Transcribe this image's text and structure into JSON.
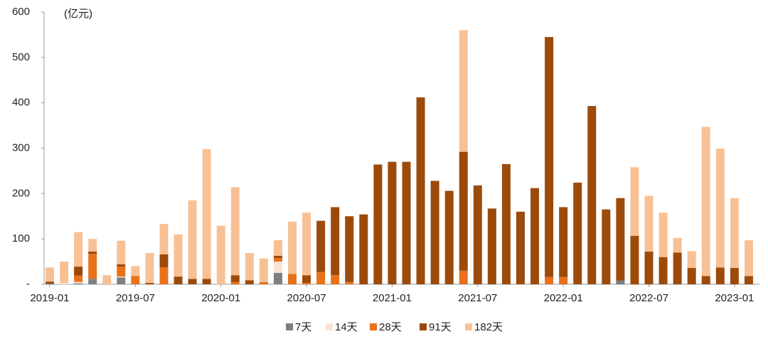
{
  "chart_data": {
    "type": "stacked_bar",
    "annotation": "(亿元)",
    "categories": [
      "2019-01",
      null,
      null,
      null,
      null,
      null,
      "2019-07",
      null,
      null,
      null,
      null,
      null,
      "2020-01",
      null,
      null,
      null,
      null,
      null,
      "2020-07",
      null,
      null,
      null,
      null,
      null,
      "2021-01",
      null,
      null,
      null,
      null,
      null,
      "2021-07",
      null,
      null,
      null,
      null,
      null,
      "2022-01",
      null,
      null,
      null,
      null,
      null,
      "2022-07",
      null,
      null,
      null,
      null,
      null,
      "2023-01",
      null
    ],
    "series": [
      {
        "name": "7天",
        "color": "#7f7f7f",
        "values": [
          1,
          0,
          2,
          12,
          0,
          15,
          0,
          0,
          0,
          0,
          0,
          0,
          0,
          0,
          0,
          0,
          25,
          0,
          0,
          0,
          0,
          0,
          0,
          0,
          0,
          0,
          0,
          0,
          0,
          0,
          0,
          0,
          0,
          0,
          0,
          0,
          0,
          0,
          0,
          0,
          8,
          0,
          0,
          0,
          0,
          0,
          0,
          0,
          0,
          0
        ]
      },
      {
        "name": "14天",
        "color": "#fbe3d3",
        "values": [
          0,
          3,
          3,
          0,
          0,
          2,
          0,
          0,
          0,
          0,
          0,
          0,
          0,
          0,
          0,
          0,
          25,
          0,
          0,
          0,
          0,
          0,
          0,
          0,
          0,
          0,
          0,
          0,
          0,
          0,
          0,
          0,
          0,
          0,
          0,
          0,
          0,
          0,
          0,
          0,
          0,
          0,
          0,
          0,
          0,
          0,
          0,
          0,
          0,
          0
        ]
      },
      {
        "name": "28天",
        "color": "#e8711a",
        "values": [
          0,
          0,
          14,
          55,
          0,
          22,
          18,
          0,
          37,
          0,
          0,
          0,
          0,
          5,
          0,
          5,
          8,
          23,
          3,
          27,
          20,
          5,
          0,
          0,
          0,
          0,
          0,
          0,
          0,
          30,
          0,
          0,
          0,
          0,
          0,
          16,
          16,
          0,
          0,
          0,
          0,
          0,
          0,
          0,
          0,
          0,
          0,
          0,
          0,
          0
        ]
      },
      {
        "name": "91天",
        "color": "#9c4a0a",
        "values": [
          5,
          0,
          20,
          5,
          0,
          5,
          0,
          3,
          29,
          17,
          12,
          12,
          0,
          15,
          9,
          0,
          5,
          0,
          17,
          113,
          150,
          145,
          154,
          264,
          270,
          270,
          412,
          228,
          206,
          262,
          218,
          167,
          265,
          160,
          212,
          529,
          154,
          224,
          393,
          165,
          182,
          107,
          72,
          60,
          70,
          36,
          18,
          37,
          36,
          18
        ]
      },
      {
        "name": "182天",
        "color": "#f8c195",
        "values": [
          31,
          47,
          76,
          28,
          20,
          52,
          22,
          66,
          67,
          93,
          173,
          286,
          129,
          194,
          60,
          52,
          34,
          115,
          138,
          0,
          0,
          0,
          0,
          0,
          0,
          0,
          0,
          0,
          0,
          268,
          0,
          0,
          0,
          0,
          0,
          0,
          0,
          0,
          0,
          0,
          0,
          151,
          123,
          98,
          32,
          37,
          329,
          262,
          154,
          79
        ]
      }
    ],
    "ylim": [
      0,
      600
    ],
    "yticks": [
      {
        "value": 0,
        "label": "-"
      },
      100,
      200,
      300,
      400,
      500,
      600
    ],
    "legend": "bottom"
  }
}
